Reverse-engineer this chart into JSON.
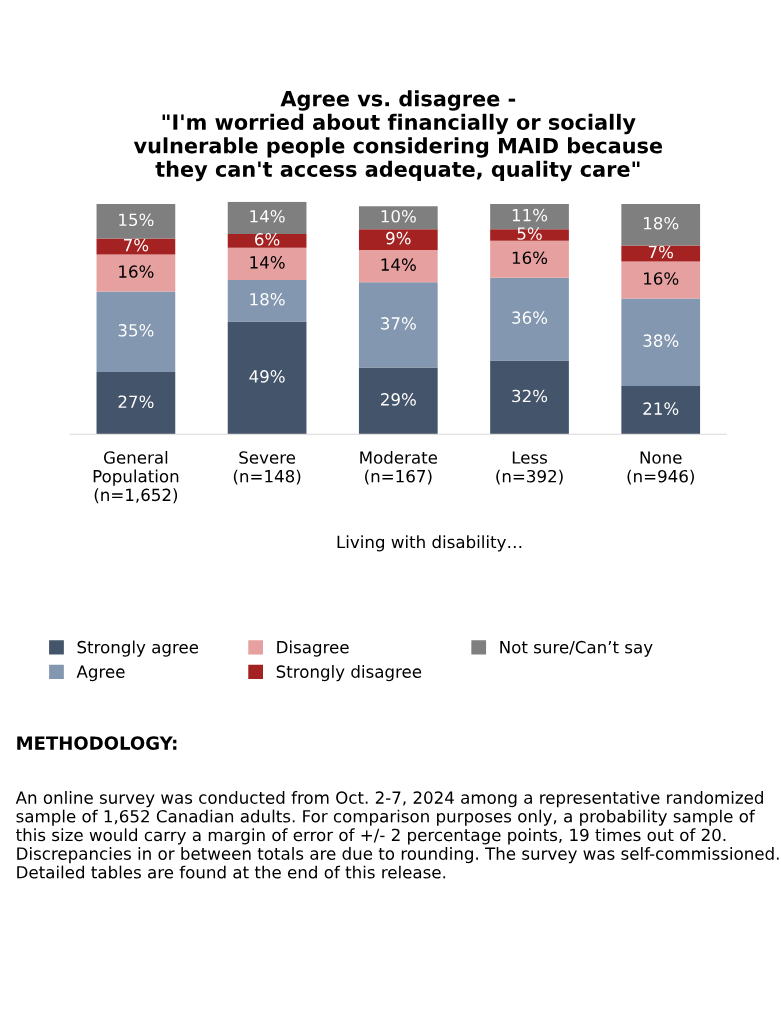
{
  "chart_data": {
    "type": "bar",
    "stacked": true,
    "legend": "bottom",
    "title": "Agree vs. disagree -\n\"I'm worried about financially or socially\nvulnerable people considering MAID because\nthey can't access adequate, quality care\"",
    "categories": [
      "General\nPopulation\n(n=1,652)",
      "Severe\n(n=148)",
      "Moderate\n(n=167)",
      "Less\n(n=392)",
      "None\n(n=946)"
    ],
    "series": [
      {
        "name": "Strongly agree",
        "color": "#44546a",
        "values": [
          27,
          49,
          29,
          32,
          21
        ],
        "value_labels": [
          "27%",
          "49%",
          "29%",
          "32%",
          "21%"
        ]
      },
      {
        "name": "Agree",
        "color": "#8497b0",
        "values": [
          35,
          18,
          37,
          36,
          38
        ],
        "value_labels": [
          "35%",
          "18%",
          "37%",
          "36%",
          "38%"
        ]
      },
      {
        "name": "Disagree",
        "color": "#e6a09f",
        "values": [
          16,
          14,
          14,
          16,
          16
        ],
        "value_labels": [
          "16%",
          "14%",
          "14%",
          "16%",
          "16%"
        ]
      },
      {
        "name": "Strongly disagree",
        "color": "#a52222",
        "values": [
          7,
          6,
          9,
          5,
          7
        ],
        "value_labels": [
          "7%",
          "6%",
          "9%",
          "5%",
          "7%"
        ]
      },
      {
        "name": "Not sure/Can’t say",
        "color": "#7f7f7f",
        "values": [
          15,
          14,
          10,
          11,
          18
        ],
        "value_labels": [
          "15%",
          "14%",
          "10%",
          "11%",
          "18%"
        ]
      }
    ],
    "annotations": [
      "Living with disability…",
      "METHODOLOGY:",
      "An online survey was conducted from Oct. 2-7, 2024 among a representative randomized sample of 1,652 Canadian adults. For comparison purposes only, a probability sample of this size would carry a margin of error of +/- 2 percentage points, 19 times out of 20. Discrepancies in or between totals are due to rounding. The survey was self-commissioned. Detailed tables are found at the end of this release."
    ]
  }
}
